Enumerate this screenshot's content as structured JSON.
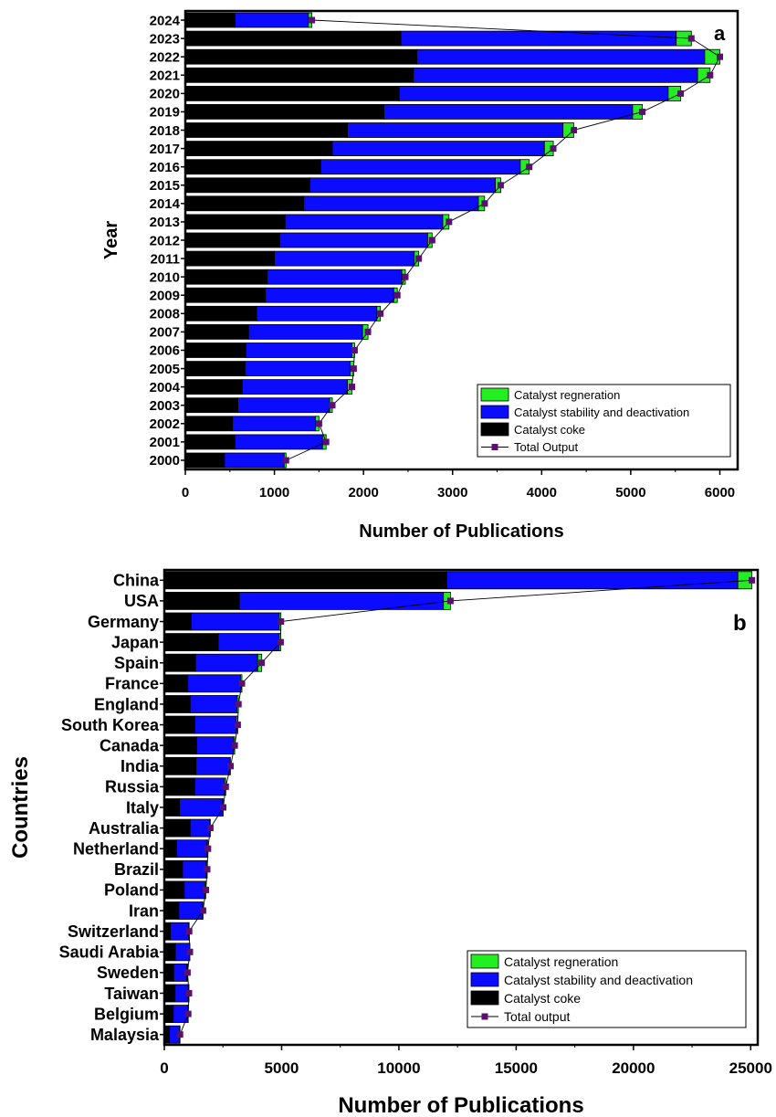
{
  "colors": {
    "coke": "#000000",
    "stability": "#0b0bff",
    "regeneration": "#22ee22",
    "total_marker": "#5a1070",
    "total_line": "#000000"
  },
  "chart_data": [
    {
      "type": "bar",
      "orientation": "horizontal",
      "stacked": true,
      "panel_label": "a",
      "xlabel": "Number of Publications",
      "ylabel": "Year",
      "xlim": [
        0,
        6200
      ],
      "xticks": [
        0,
        1000,
        2000,
        3000,
        4000,
        5000,
        6000
      ],
      "categories": [
        "2024",
        "2023",
        "2022",
        "2021",
        "2020",
        "2019",
        "2018",
        "2017",
        "2016",
        "2015",
        "2014",
        "2013",
        "2012",
        "2011",
        "2010",
        "2009",
        "2008",
        "2007",
        "2006",
        "2005",
        "2004",
        "2003",
        "2002",
        "2001",
        "2000"
      ],
      "series": [
        {
          "name": "Catalyst coke",
          "color_key": "coke",
          "values": [
            560,
            2420,
            2600,
            2560,
            2400,
            2230,
            1820,
            1650,
            1520,
            1400,
            1330,
            1120,
            1060,
            1000,
            920,
            900,
            800,
            710,
            680,
            670,
            640,
            590,
            530,
            560,
            440
          ]
        },
        {
          "name": "Catalyst stability and deactivation",
          "color_key": "stability",
          "values": [
            820,
            3090,
            3230,
            3190,
            3020,
            2790,
            2420,
            2380,
            2240,
            2080,
            1960,
            1770,
            1660,
            1570,
            1510,
            1440,
            1350,
            1280,
            1190,
            1180,
            1180,
            1030,
            930,
            980,
            670
          ]
        },
        {
          "name": "Catalyst regneration",
          "color_key": "regeneration",
          "values": [
            40,
            170,
            170,
            140,
            140,
            110,
            120,
            100,
            100,
            60,
            70,
            70,
            50,
            50,
            40,
            40,
            40,
            60,
            30,
            40,
            50,
            30,
            40,
            40,
            20
          ]
        }
      ],
      "total_output": {
        "name": "Total Output",
        "values": [
          1420,
          5680,
          6000,
          5890,
          5560,
          5130,
          4360,
          4130,
          3860,
          3540,
          3360,
          2960,
          2770,
          2620,
          2470,
          2380,
          2190,
          2050,
          1900,
          1890,
          1870,
          1650,
          1500,
          1580,
          1130
        ]
      },
      "legend_position": "bottom-right",
      "legend": [
        "Catalyst regneration",
        "Catalyst stability and deactivation",
        "Catalyst coke",
        "Total Output"
      ]
    },
    {
      "type": "bar",
      "orientation": "horizontal",
      "stacked": true,
      "panel_label": "b",
      "xlabel": "Number of Publications",
      "ylabel": "Countries",
      "xlim": [
        0,
        25300
      ],
      "xticks": [
        0,
        5000,
        10000,
        15000,
        20000,
        25000
      ],
      "categories": [
        "China",
        "USA",
        "Germany",
        "Japan",
        "Spain",
        "France",
        "England",
        "South Korea",
        "Canada",
        "India",
        "Russia",
        "Italy",
        "Australia",
        "Netherland",
        "Brazil",
        "Poland",
        "Iran",
        "Switzerland",
        "Saudi Arabia",
        "Sweden",
        "Taiwan",
        "Belgium",
        "Malaysia"
      ],
      "series": [
        {
          "name": "Catalyst coke",
          "color_key": "coke",
          "values": [
            12050,
            3200,
            1150,
            2300,
            1330,
            1000,
            1100,
            1300,
            1380,
            1350,
            1300,
            650,
            1100,
            520,
            780,
            850,
            620,
            260,
            470,
            400,
            460,
            380,
            220
          ]
        },
        {
          "name": "Catalyst stability and deactivation",
          "color_key": "stability",
          "values": [
            12400,
            8700,
            3750,
            2600,
            2650,
            2250,
            2000,
            1770,
            1570,
            1430,
            1270,
            1820,
            830,
            1300,
            1010,
            880,
            1000,
            780,
            600,
            560,
            560,
            620,
            430
          ]
        },
        {
          "name": "Catalyst regneration",
          "color_key": "regeneration",
          "values": [
            600,
            300,
            70,
            60,
            170,
            60,
            60,
            60,
            50,
            40,
            50,
            40,
            30,
            40,
            40,
            40,
            30,
            20,
            20,
            30,
            30,
            20,
            20
          ]
        }
      ],
      "total_output": {
        "name": "Total output",
        "values": [
          25050,
          12200,
          4970,
          4960,
          4150,
          3310,
          3160,
          3130,
          3000,
          2820,
          2620,
          2510,
          1960,
          1860,
          1830,
          1770,
          1650,
          1060,
          1090,
          990,
          1050,
          1020,
          670
        ]
      },
      "legend_position": "bottom-right",
      "legend": [
        "Catalyst regneration",
        "Catalyst stability and deactivation",
        "Catalyst coke",
        "Total output"
      ]
    }
  ]
}
